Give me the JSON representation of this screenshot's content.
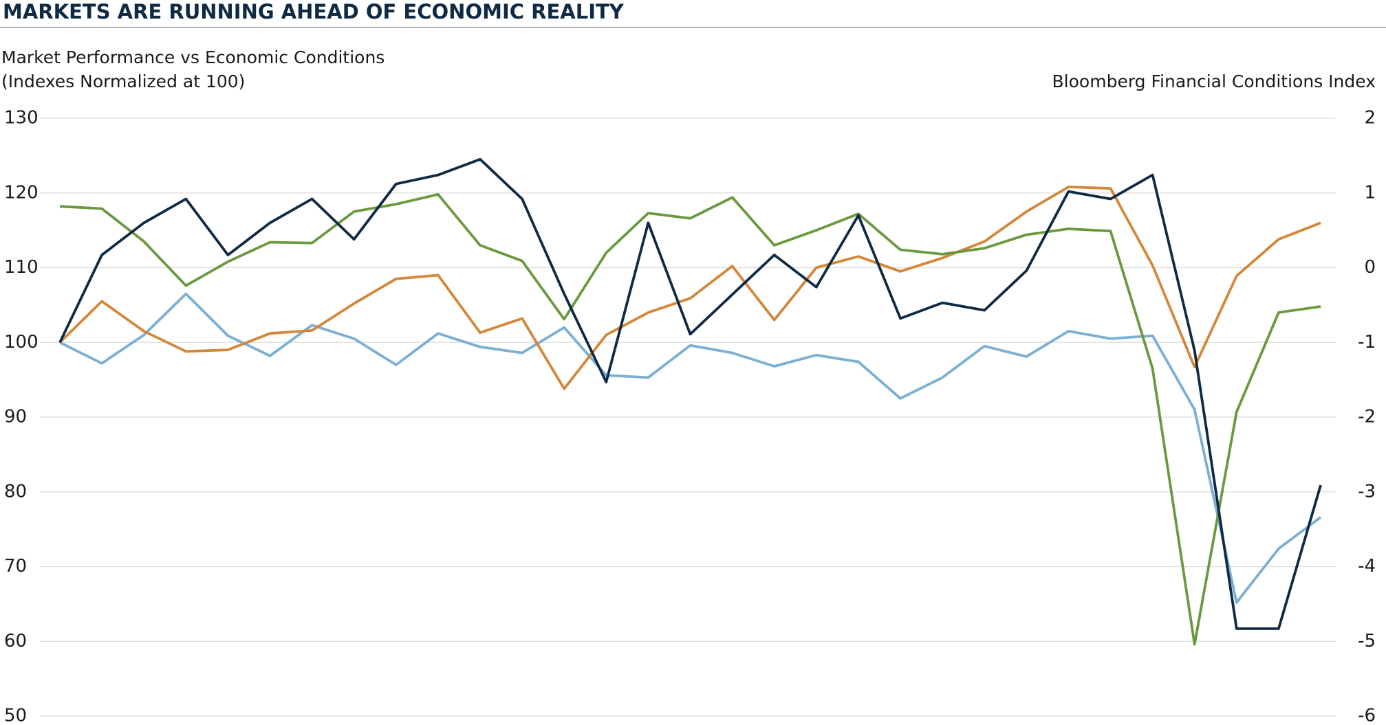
{
  "chart_data": {
    "type": "line",
    "title": "MARKETS ARE RUNNING AHEAD OF ECONOMIC REALITY",
    "subtitle": [
      "Market Performance vs Economic Conditions",
      "(Indexes Normalized at 100)"
    ],
    "y2_label": "Bloomberg Financial Conditions Index",
    "ylim": [
      50,
      130
    ],
    "yticks": [
      50,
      60,
      70,
      80,
      90,
      100,
      110,
      120,
      130
    ],
    "y2lim": [
      -6,
      2
    ],
    "y2ticks": [
      -6,
      -5,
      -4,
      -3,
      -2,
      -1,
      0,
      1,
      2
    ],
    "grid": true,
    "series": [
      {
        "color": "#7bafd4",
        "values": [
          100,
          97.2,
          101,
          106.5,
          100.9,
          98.2,
          102.3,
          100.5,
          97,
          101.2,
          99.4,
          98.6,
          102,
          95.6,
          95.3,
          99.6,
          98.6,
          96.8,
          98.3,
          97.4,
          92.5,
          95.3,
          99.5,
          98.1,
          101.5,
          100.5,
          100.9,
          91,
          65.2,
          72.4,
          76.6
        ]
      },
      {
        "color": "#d4873a",
        "values": [
          100,
          105.5,
          101.5,
          98.8,
          99,
          101.2,
          101.6,
          105.2,
          108.5,
          109,
          101.3,
          103.2,
          93.8,
          101,
          104,
          105.9,
          110.2,
          103,
          110,
          111.5,
          109.5,
          111.3,
          113.5,
          117.5,
          120.8,
          120.6,
          110.3,
          96.7,
          108.9,
          113.8,
          116
        ]
      },
      {
        "color": "#6a9a3f",
        "axis": "y2",
        "values": [
          0.82,
          0.79,
          0.35,
          -0.24,
          0.08,
          0.34,
          0.33,
          0.75,
          0.85,
          0.98,
          0.3,
          0.09,
          -0.69,
          0.2,
          0.73,
          0.66,
          0.94,
          0.3,
          0.5,
          0.72,
          0.24,
          0.18,
          0.26,
          0.44,
          0.52,
          0.49,
          -1.35,
          -5.04,
          -1.93,
          -0.6,
          -0.52
        ]
      },
      {
        "color": "#0f2a44",
        "values": [
          100,
          111.7,
          116,
          119.2,
          111.7,
          116,
          119.2,
          113.8,
          121.2,
          122.4,
          124.5,
          119.2,
          106.5,
          94.7,
          116,
          101.1,
          106.4,
          111.7,
          107.4,
          117,
          103.2,
          105.3,
          104.3,
          109.6,
          120.2,
          119.2,
          122.4,
          98.9,
          61.7,
          61.7,
          80.9
        ]
      }
    ]
  }
}
